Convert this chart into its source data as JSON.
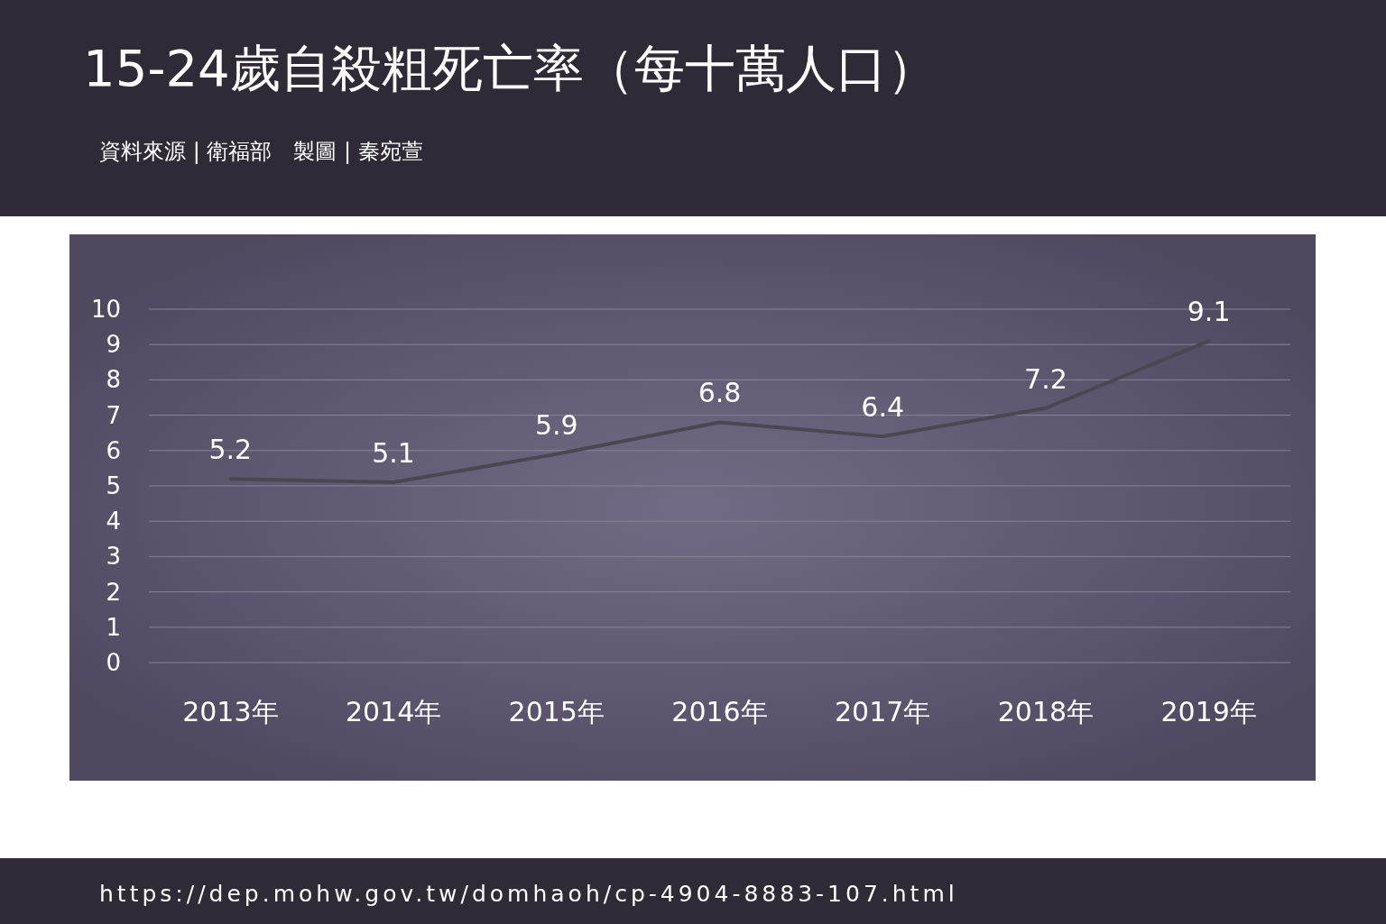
{
  "chart_data": {
    "type": "line",
    "title": "15-24歲自殺粗死亡率（每十萬人口）",
    "annotations": [
      "資料來源 | 衛福部　製圖 | 秦宛萱",
      "https://dep.mohw.gov.tw/domhaoh/cp-4904-8883-107.html"
    ],
    "categories": [
      "2013年",
      "2014年",
      "2015年",
      "2016年",
      "2017年",
      "2018年",
      "2019年"
    ],
    "series": [
      {
        "color": "#4a4752",
        "values": [
          5.2,
          5.1,
          5.9,
          6.8,
          6.4,
          7.2,
          9.1
        ]
      }
    ],
    "ylim": [
      0,
      10
    ],
    "yticks": [
      0,
      1,
      2,
      3,
      4,
      5,
      6,
      7,
      8,
      9,
      10
    ],
    "grid": "y",
    "data_labels": true,
    "marker": "none",
    "line_style": "solid"
  }
}
